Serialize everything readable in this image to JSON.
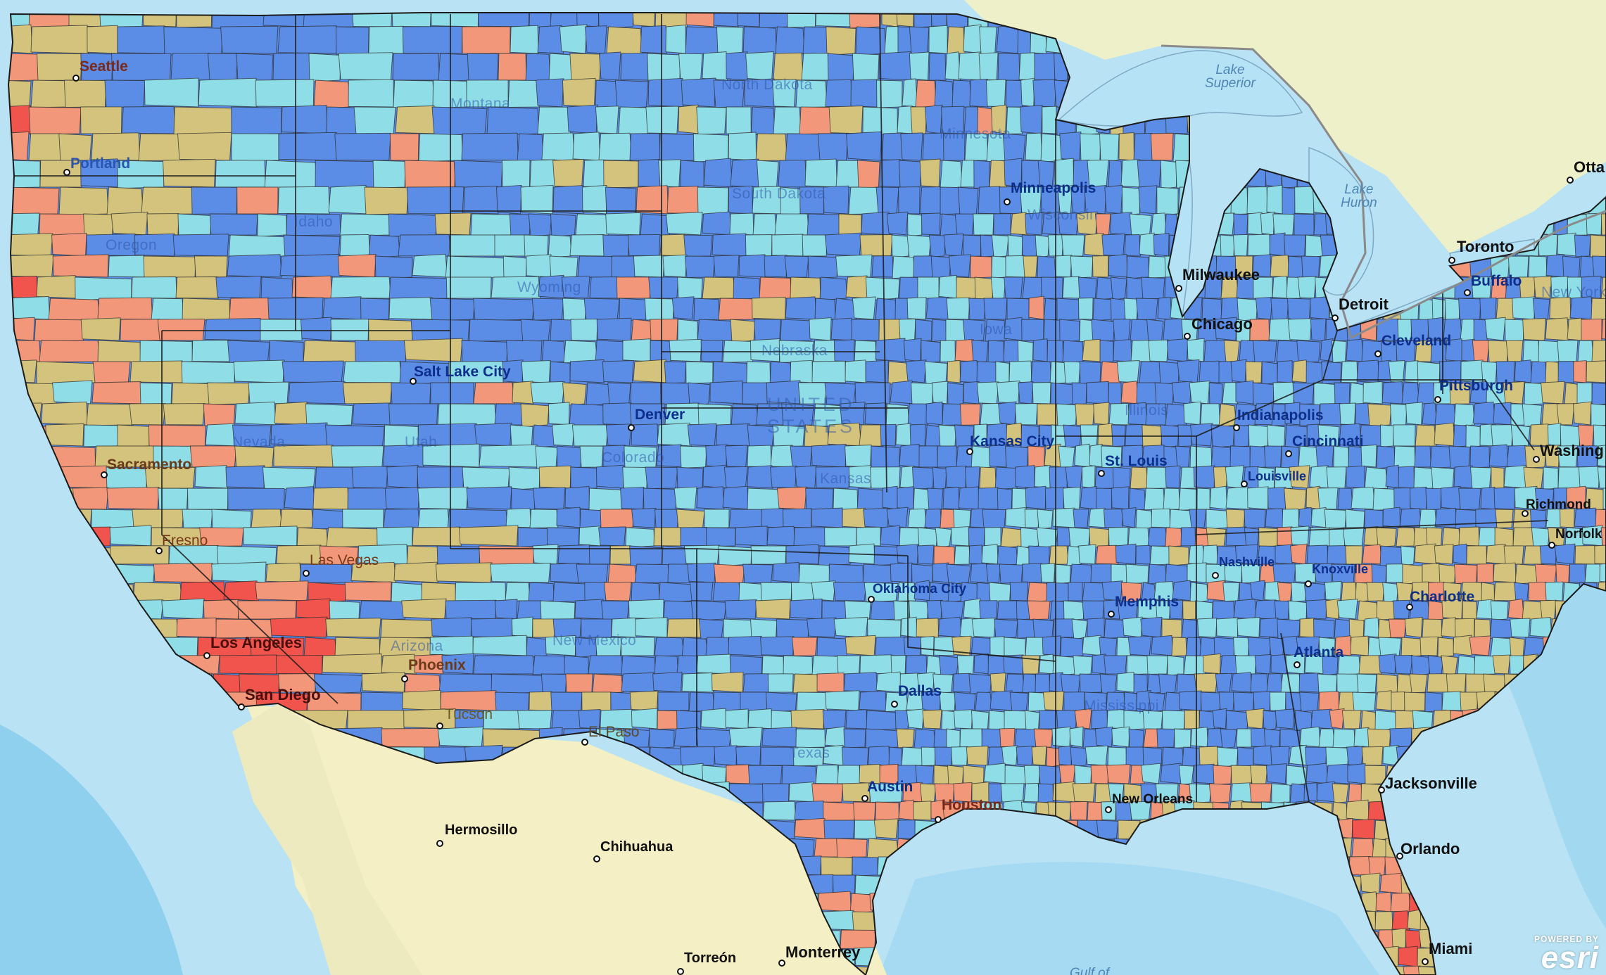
{
  "map": {
    "colors": {
      "ocean": "#b9e3f4",
      "ocean_deep": "#8fd0ee",
      "land": "#f4efc4",
      "canada": "#eef0c9",
      "lake": "#b6e2f5",
      "class_dark_blue": "#5b8ce6",
      "class_light_blue": "#8fdde6",
      "class_tan": "#d4c37c",
      "class_salmon": "#f2977a",
      "class_red": "#f0544c",
      "border": "#2b2b2b",
      "label_city": "#111111",
      "label_city_inside": "#0d2f8a"
    },
    "city_labels": [
      {
        "name": "Seattle",
        "text": "Seattle"
      },
      {
        "name": "Portland",
        "text": "Portland"
      },
      {
        "name": "Sacramento",
        "text": "Sacramento"
      },
      {
        "name": "Fresno",
        "text": "Fresno"
      },
      {
        "name": "Las-Vegas",
        "text": "Las Vegas"
      },
      {
        "name": "Los-Angeles",
        "text": "Los Angeles"
      },
      {
        "name": "San-Diego",
        "text": "San Diego"
      },
      {
        "name": "Phoenix",
        "text": "Phoenix"
      },
      {
        "name": "Tucson",
        "text": "Tucson"
      },
      {
        "name": "El-Paso",
        "text": "El Paso"
      },
      {
        "name": "Salt-Lake-City",
        "text": "Salt Lake City"
      },
      {
        "name": "Denver",
        "text": "Denver"
      },
      {
        "name": "Minneapolis",
        "text": "Minneapolis"
      },
      {
        "name": "Milwaukee",
        "text": "Milwaukee"
      },
      {
        "name": "Chicago",
        "text": "Chicago"
      },
      {
        "name": "Detroit",
        "text": "Detroit"
      },
      {
        "name": "Toronto",
        "text": "Toronto"
      },
      {
        "name": "Ottawa",
        "text": "Otta"
      },
      {
        "name": "Buffalo",
        "text": "Buffalo"
      },
      {
        "name": "Cleveland",
        "text": "Cleveland"
      },
      {
        "name": "Pittsburgh",
        "text": "Pittsburgh"
      },
      {
        "name": "Indianapolis",
        "text": "Indianapolis"
      },
      {
        "name": "Cincinnati",
        "text": "Cincinnati"
      },
      {
        "name": "Louisville",
        "text": "Louisville"
      },
      {
        "name": "Kansas-City",
        "text": "Kansas City"
      },
      {
        "name": "St-Louis",
        "text": "St. Louis"
      },
      {
        "name": "Nashville",
        "text": "Nashville"
      },
      {
        "name": "Knoxville",
        "text": "Knoxville"
      },
      {
        "name": "Memphis",
        "text": "Memphis"
      },
      {
        "name": "Oklahoma-City",
        "text": "Oklahoma City"
      },
      {
        "name": "Dallas",
        "text": "Dallas"
      },
      {
        "name": "Austin",
        "text": "Austin"
      },
      {
        "name": "Houston",
        "text": "Houston"
      },
      {
        "name": "New-Orleans",
        "text": "New Orleans"
      },
      {
        "name": "Atlanta",
        "text": "Atlanta"
      },
      {
        "name": "Charlotte",
        "text": "Charlotte"
      },
      {
        "name": "Richmond",
        "text": "Richmond"
      },
      {
        "name": "Norfolk",
        "text": "Norfolk"
      },
      {
        "name": "Washington",
        "text": "Washing"
      },
      {
        "name": "Jacksonville",
        "text": "Jacksonville"
      },
      {
        "name": "Orlando",
        "text": "Orlando"
      },
      {
        "name": "Miami",
        "text": "Miami"
      },
      {
        "name": "Hermosillo",
        "text": "Hermosillo"
      },
      {
        "name": "Chihuahua",
        "text": "Chihuahua"
      },
      {
        "name": "Monterrey",
        "text": "Monterrey"
      },
      {
        "name": "Torreon",
        "text": "Torreón"
      }
    ],
    "state_labels": [
      {
        "name": "Montana",
        "text": "Montana"
      },
      {
        "name": "North-Dakota",
        "text": "North Dakota"
      },
      {
        "name": "Minnesota",
        "text": "Minnesota"
      },
      {
        "name": "South-Dakota",
        "text": "South Dakota"
      },
      {
        "name": "Wisconsin",
        "text": "Wisconsin"
      },
      {
        "name": "Idaho",
        "text": "Idaho"
      },
      {
        "name": "Oregon",
        "text": "Oregon"
      },
      {
        "name": "Wyoming",
        "text": "Wyoming"
      },
      {
        "name": "Nebraska",
        "text": "Nebraska"
      },
      {
        "name": "Iowa",
        "text": "Iowa"
      },
      {
        "name": "Utah",
        "text": "Utah"
      },
      {
        "name": "Nevada",
        "text": "Nevada"
      },
      {
        "name": "Colorado",
        "text": "Colorado"
      },
      {
        "name": "Kansas",
        "text": "Kansas"
      },
      {
        "name": "Arizona",
        "text": "Arizona"
      },
      {
        "name": "New-Mexico",
        "text": "New Mexico"
      },
      {
        "name": "Texas",
        "text": "Texas"
      },
      {
        "name": "Mississippi",
        "text": "Mississippi"
      },
      {
        "name": "Illinois",
        "text": "Illinois"
      },
      {
        "name": "New-York",
        "text": "New York"
      }
    ],
    "water_labels": [
      {
        "name": "Lake-Superior",
        "text": "Lake\nSuperior"
      },
      {
        "name": "Lake-Huron",
        "text": "Lake\nHuron"
      },
      {
        "name": "Gulf-of-Mexico",
        "text": "Gulf of"
      }
    ],
    "country_label": {
      "text": "UNITED\nSTATES"
    },
    "attribution": {
      "line1": "POWERED BY",
      "line2": "esri"
    }
  }
}
